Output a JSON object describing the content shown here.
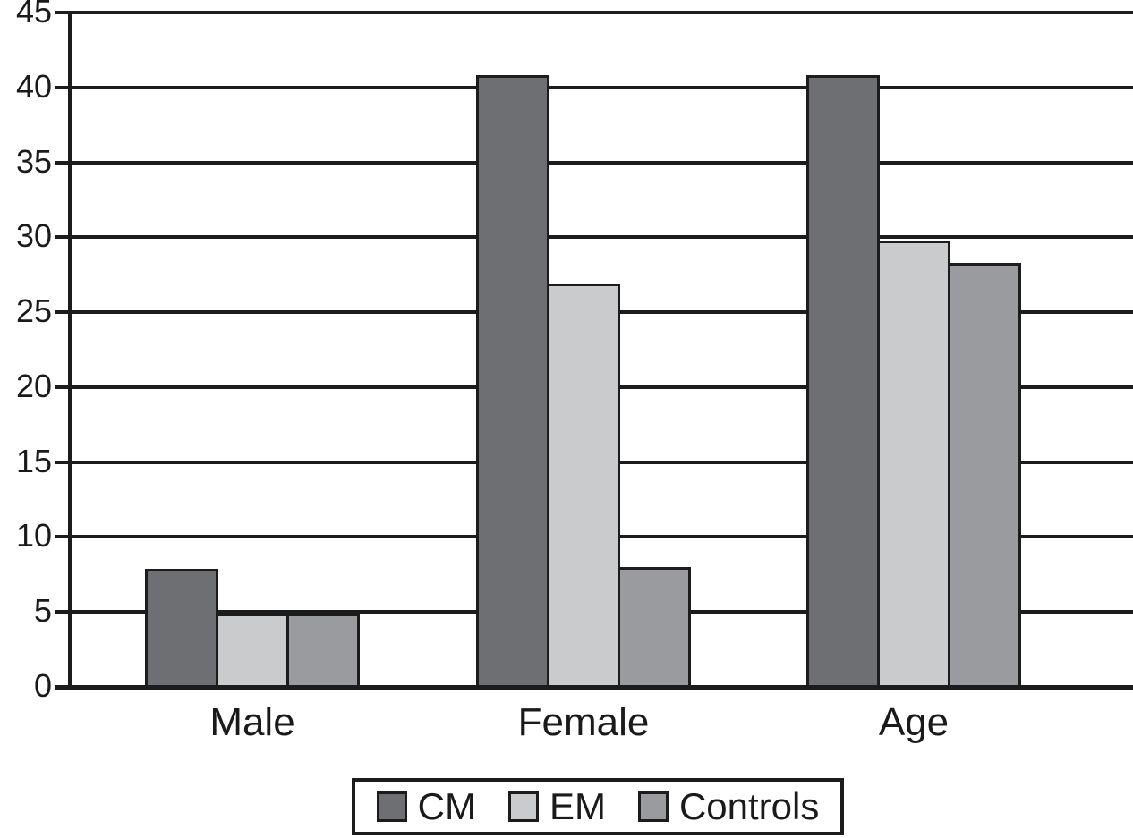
{
  "chart_data": {
    "type": "bar",
    "title": "",
    "xlabel": "",
    "ylabel": "",
    "categories": [
      "Male",
      "Female",
      "Age"
    ],
    "series": [
      {
        "name": "CM",
        "color": "#6E6F72",
        "values": [
          7.9,
          40.8,
          40.8
        ]
      },
      {
        "name": "EM",
        "color": "#C9CBCD",
        "values": [
          4.9,
          26.9,
          29.8
        ]
      },
      {
        "name": "Controls",
        "color": "#9A9B9E",
        "values": [
          4.9,
          8.0,
          28.3
        ]
      }
    ],
    "ylim": [
      0,
      45
    ],
    "yticks": [
      0,
      5,
      10,
      15,
      20,
      25,
      30,
      35,
      40,
      45
    ],
    "grid": true,
    "legend_position": "bottom",
    "line_color": "#1C1C1C",
    "background": "#FFFFFF"
  }
}
